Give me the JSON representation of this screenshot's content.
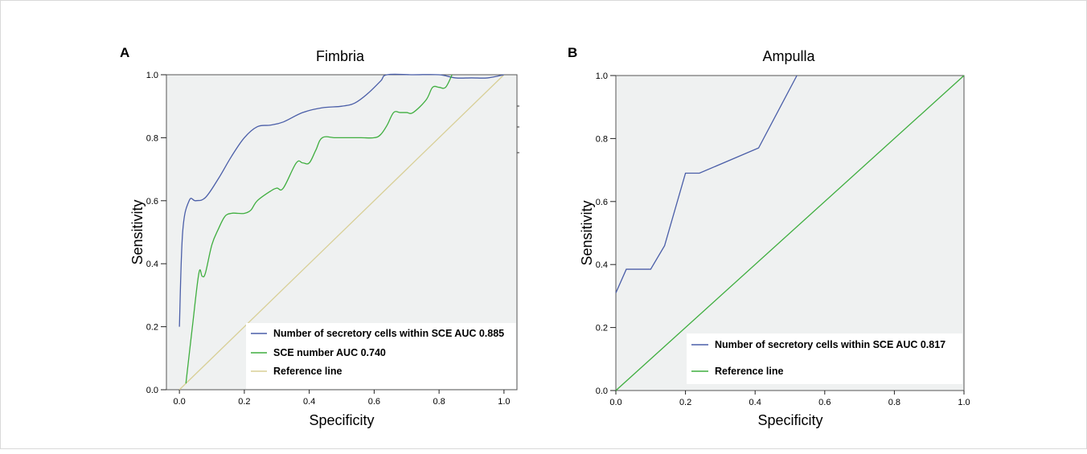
{
  "colors": {
    "plot_bg": "#eff1f1",
    "blue_series": "#4a5ea8",
    "green_series": "#3fae3f",
    "reference_fimbria": "#d8cf96",
    "reference_ampulla": "#3fae3f"
  },
  "chart_data": [
    {
      "panel_label": "A",
      "type": "line",
      "title": "Fimbria",
      "xlabel": "Specificity",
      "ylabel": "Sensitivity",
      "xlim": [
        -0.04,
        1.04
      ],
      "ylim": [
        0,
        1
      ],
      "xticks": [
        "0.0",
        "0.2",
        "0.4",
        "0.6",
        "0.8",
        "1.0"
      ],
      "yticks": [
        "0.0",
        "0.2",
        "0.4",
        "0.6",
        "0.8",
        "1.0"
      ],
      "grid": false,
      "legend_position": "bottom-right",
      "series": [
        {
          "name": "Number of secretory cells within SCE AUC 0.885",
          "color": "#4a5ea8",
          "x": [
            0.0,
            0.01,
            0.03,
            0.05,
            0.08,
            0.12,
            0.16,
            0.2,
            0.24,
            0.28,
            0.32,
            0.38,
            0.44,
            0.5,
            0.54,
            0.58,
            0.62,
            0.64,
            0.72,
            0.8,
            0.85,
            0.9,
            0.95,
            1.0
          ],
          "y": [
            0.2,
            0.5,
            0.6,
            0.6,
            0.61,
            0.67,
            0.74,
            0.8,
            0.835,
            0.84,
            0.85,
            0.88,
            0.895,
            0.9,
            0.91,
            0.94,
            0.98,
            1.0,
            1.0,
            1.0,
            0.99,
            0.99,
            0.99,
            1.0
          ]
        },
        {
          "name": "SCE number AUC 0.740",
          "color": "#3fae3f",
          "x": [
            0.02,
            0.04,
            0.06,
            0.07,
            0.08,
            0.1,
            0.12,
            0.14,
            0.16,
            0.18,
            0.2,
            0.22,
            0.24,
            0.28,
            0.3,
            0.32,
            0.36,
            0.38,
            0.4,
            0.42,
            0.44,
            0.48,
            0.52,
            0.56,
            0.6,
            0.62,
            0.64,
            0.66,
            0.68,
            0.7,
            0.72,
            0.76,
            0.78,
            0.8,
            0.82,
            0.84
          ],
          "y": [
            0.02,
            0.2,
            0.37,
            0.36,
            0.37,
            0.46,
            0.51,
            0.55,
            0.56,
            0.56,
            0.56,
            0.57,
            0.6,
            0.63,
            0.64,
            0.64,
            0.72,
            0.72,
            0.72,
            0.76,
            0.8,
            0.8,
            0.8,
            0.8,
            0.8,
            0.81,
            0.84,
            0.88,
            0.88,
            0.88,
            0.88,
            0.92,
            0.96,
            0.96,
            0.96,
            1.0
          ]
        },
        {
          "name": "Reference line",
          "color": "#d8cf96",
          "x": [
            0,
            1
          ],
          "y": [
            0,
            1
          ]
        }
      ]
    },
    {
      "panel_label": "B",
      "type": "line",
      "title": "Ampulla",
      "xlabel": "Specificity",
      "ylabel": "Sensitivity",
      "xlim": [
        0,
        1
      ],
      "ylim": [
        0,
        1
      ],
      "xticks": [
        "0.0",
        "0.2",
        "0.4",
        "0.6",
        "0.8",
        "1.0"
      ],
      "yticks": [
        "0.0",
        "0.2",
        "0.4",
        "0.6",
        "0.8",
        "1.0"
      ],
      "grid": false,
      "legend_position": "bottom-right",
      "series": [
        {
          "name": "Number of secretory cells within SCE AUC 0.817",
          "color": "#4a5ea8",
          "x": [
            0.0,
            0.03,
            0.1,
            0.14,
            0.2,
            0.24,
            0.41,
            0.52
          ],
          "y": [
            0.31,
            0.385,
            0.385,
            0.46,
            0.69,
            0.69,
            0.77,
            1.0
          ]
        },
        {
          "name": "Reference line",
          "color": "#3fae3f",
          "x": [
            0,
            1
          ],
          "y": [
            0,
            1
          ]
        }
      ]
    }
  ]
}
